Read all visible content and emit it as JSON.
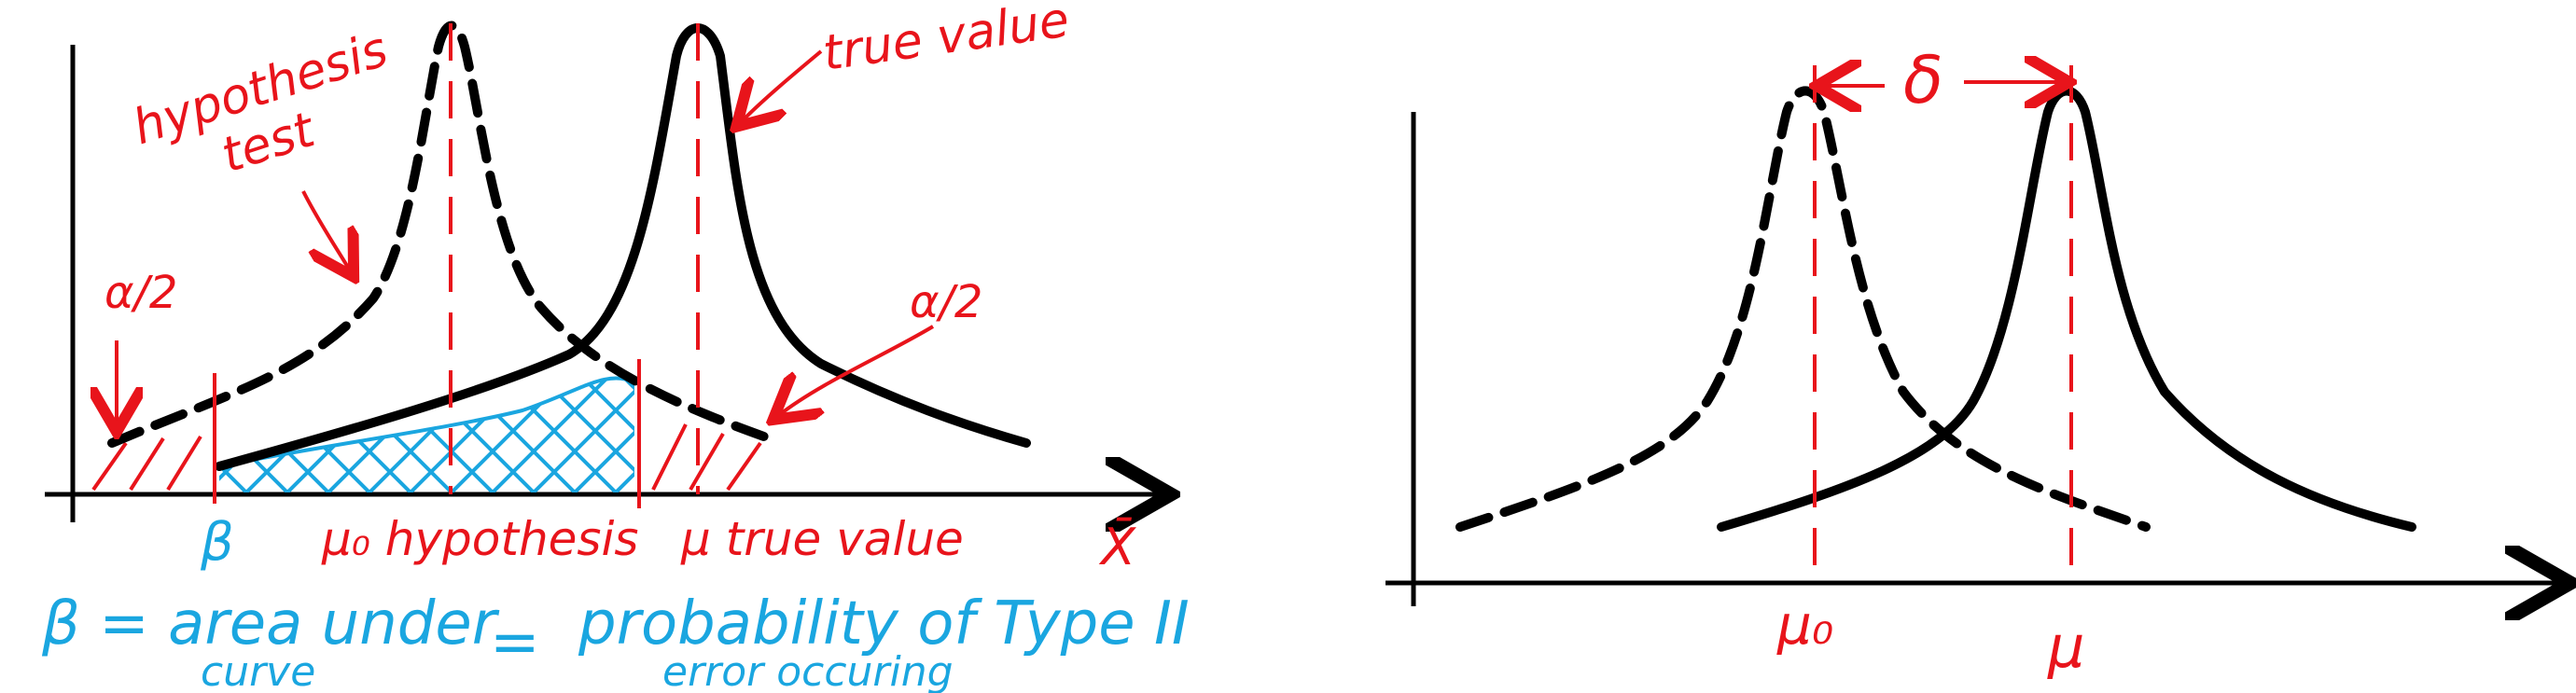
{
  "colors": {
    "ink": "#000000",
    "annotation_red": "#e8141b",
    "annotation_blue": "#1aa6e0"
  },
  "left_figure": {
    "labels": {
      "hypothesis_line1": "hypothesis",
      "hypothesis_line2": "test",
      "true_value_top": "true value",
      "alpha_left": "α/2",
      "alpha_right": "α/2",
      "beta_axis": "β",
      "mu0": "μ₀ hypothesis",
      "mu_true": "μ true value",
      "xbar": "X̄"
    },
    "formula": {
      "lhs": "β = area under",
      "lhs_line2": "curve",
      "equals": "=",
      "rhs": "probability of Type II",
      "rhs_line2": "error occuring"
    }
  },
  "right_figure": {
    "labels": {
      "delta": "δ",
      "mu0": "μ₀",
      "mu": "μ"
    }
  }
}
